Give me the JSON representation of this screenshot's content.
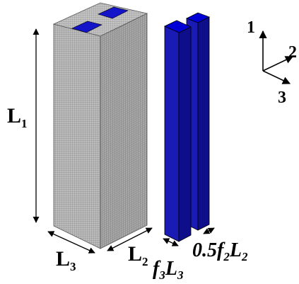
{
  "figure": {
    "colors": {
      "matrix_face": "#b9b9b9",
      "matrix_face_dark": "#a3a3a3",
      "matrix_top": "#bdbdbd",
      "mesh_line": "#6e6e6e",
      "fiber": "#1a1ab4",
      "fiber_dark": "#0f0f8c",
      "fiber_top": "#0000d2",
      "stroke": "#000000"
    },
    "dimension_labels": {
      "L1": {
        "base": "L",
        "sub": "1"
      },
      "L2": {
        "base": "L",
        "sub": "2"
      },
      "L3": {
        "base": "L",
        "sub": "3"
      },
      "f3L3": {
        "f": "f",
        "f_sub": "3",
        "L": "L",
        "L_sub": "3"
      },
      "halfF2L2": {
        "coef": "0.5",
        "f": "f",
        "f_sub": "2",
        "L": "L",
        "L_sub": "2"
      }
    },
    "axes": {
      "axis1": "1",
      "axis2": "2",
      "axis3": "3"
    }
  }
}
